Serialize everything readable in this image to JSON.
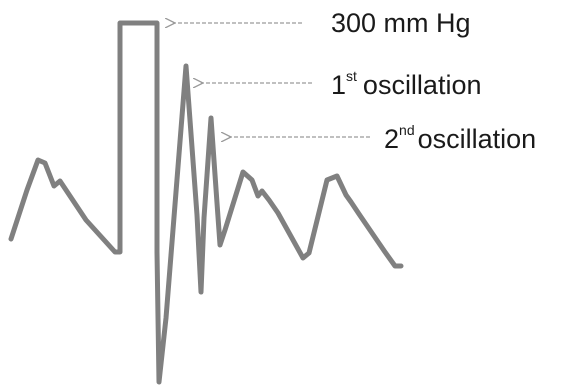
{
  "annotations": {
    "pressure_label": {
      "text": "300 mm Hg"
    },
    "first_oscillation": {
      "number": "1",
      "ordinal_suffix": "st",
      "text": "oscillation"
    },
    "second_oscillation": {
      "number": "2",
      "ordinal_suffix": "nd",
      "text": "oscillation"
    }
  },
  "colors": {
    "waveform": "#808080",
    "arrow": "#9a9a9a",
    "text": "#1a1a1a",
    "background": "#ffffff"
  }
}
